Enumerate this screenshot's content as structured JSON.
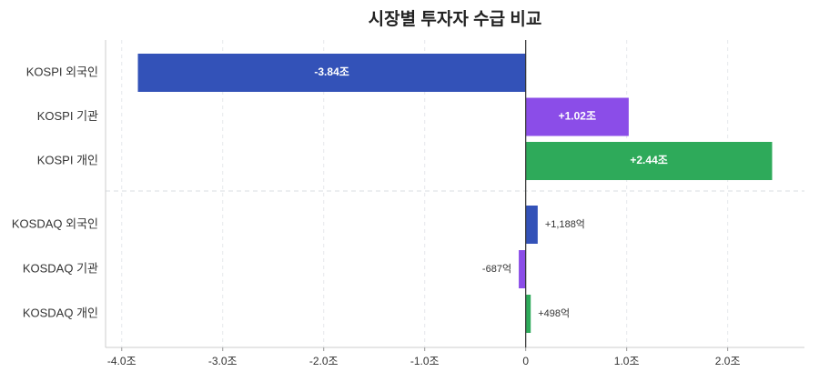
{
  "chart_data": {
    "type": "hbar",
    "title": "시장별 투자자 수급 비교",
    "categories": [
      "KOSPI 외국인",
      "KOSPI 기관",
      "KOSPI 개인",
      "KOSDAQ 외국인",
      "KOSDAQ 기관",
      "KOSDAQ 개인"
    ],
    "values": [
      -3.84,
      1.02,
      2.44,
      0.1188,
      -0.0687,
      0.0498
    ],
    "value_labels": [
      "-3.84조",
      "+1.02조",
      "+2.44조",
      "+1,188억",
      "-687억",
      "+498억"
    ],
    "colors": [
      "#3352b8",
      "#8b4de8",
      "#2eaa5a",
      "#3352b8",
      "#8b4de8",
      "#2eaa5a"
    ],
    "xlim": [
      -4.16,
      2.76
    ],
    "xticks": [
      {
        "value": -4,
        "label": "-4.0조"
      },
      {
        "value": -3,
        "label": "-3.0조"
      },
      {
        "value": -2,
        "label": "-2.0조"
      },
      {
        "value": -1,
        "label": "-1.0조"
      },
      0,
      {
        "value": 1,
        "label": "1.0조"
      },
      {
        "value": 2,
        "label": "2.0조"
      }
    ],
    "grid": true
  }
}
